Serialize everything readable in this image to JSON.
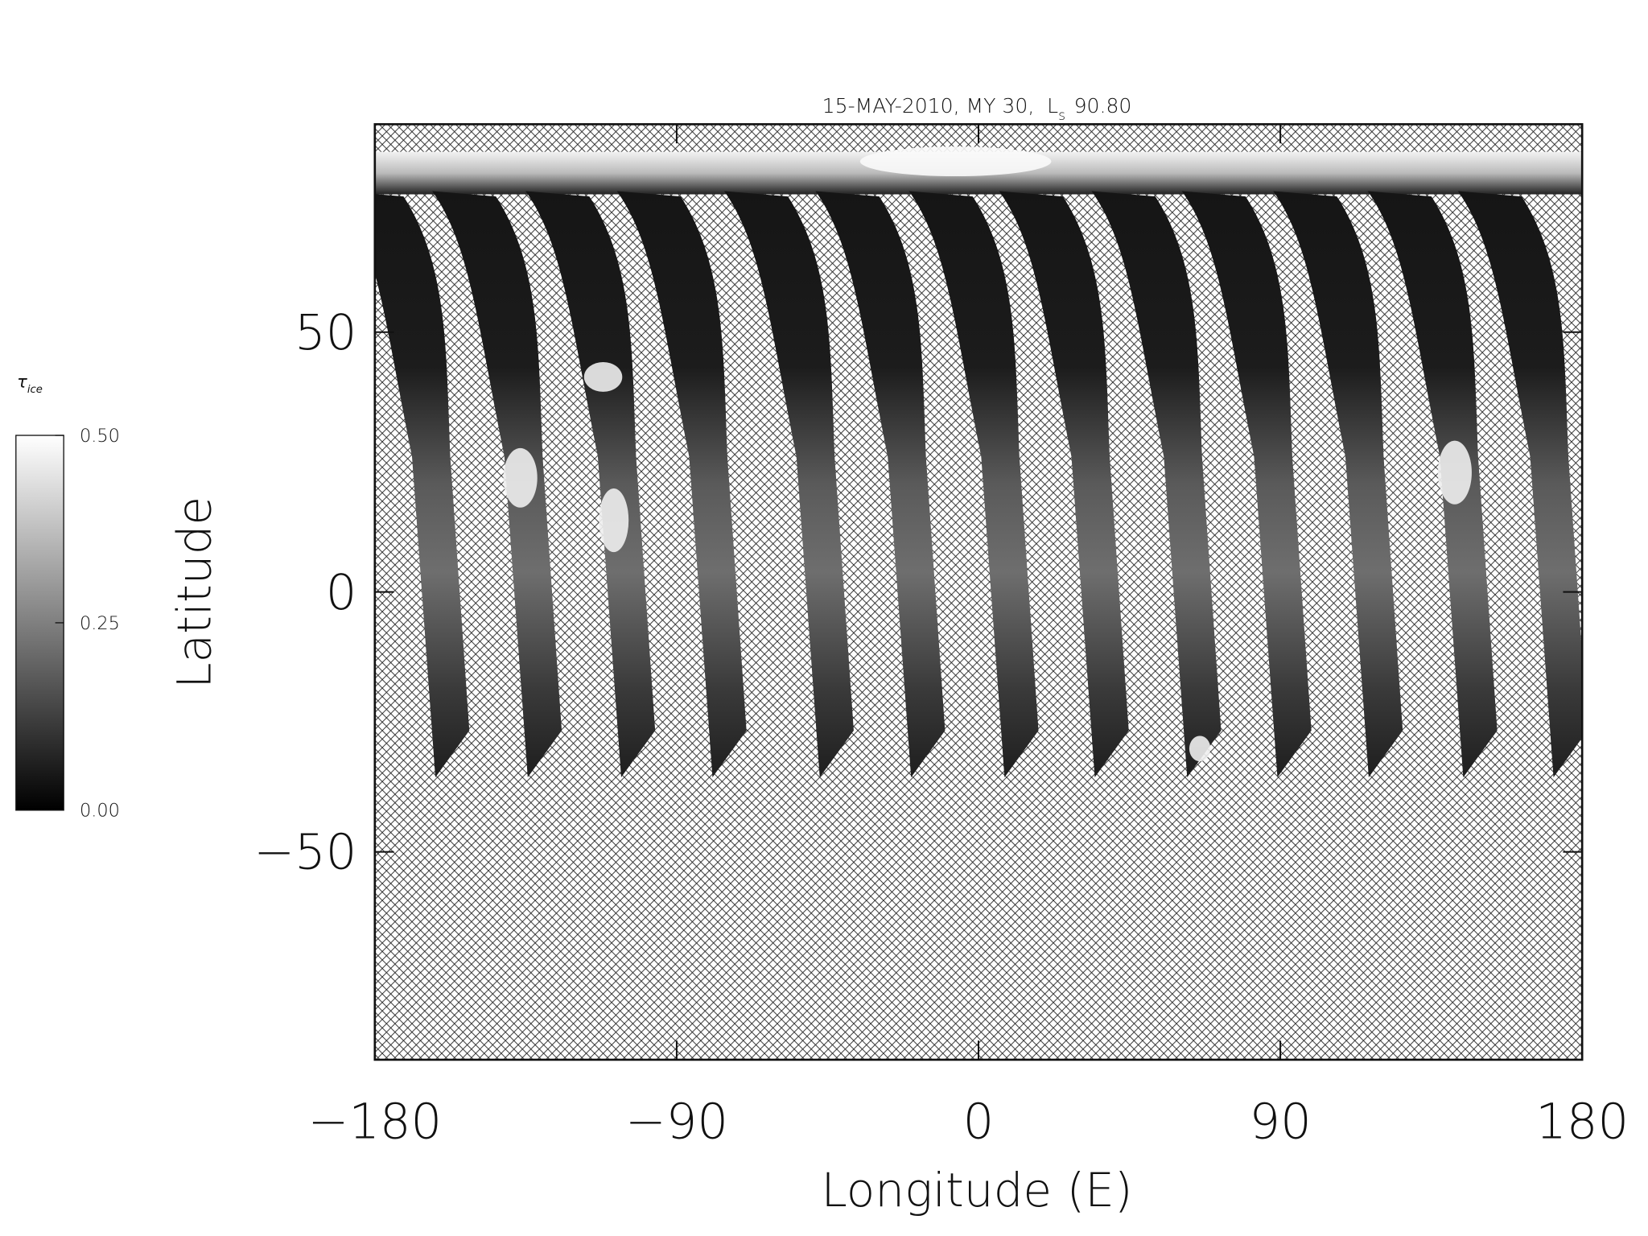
{
  "chart_data": {
    "type": "map",
    "title": "15-MAY-2010, MY 30,",
    "title_symbol": "L",
    "title_subscript": "s",
    "title_value": "90.80",
    "x_label": "Longitude (E)",
    "y_label": "Latitude",
    "xlim": [
      -180,
      180
    ],
    "xticks": [
      {
        "value": -180,
        "label": "−180"
      },
      {
        "value": -90,
        "label": "−90"
      },
      0,
      90,
      180
    ],
    "ylim": [
      -90,
      90
    ],
    "yticks": [
      {
        "value": -50,
        "label": "−50"
      },
      0,
      50
    ],
    "colorbar_label": "τ",
    "colorbar_label_subscript": "ice",
    "colorbar_lim": [
      0,
      0.5
    ],
    "colorbar_ticks": [
      {
        "value": 0,
        "label": "0.00"
      },
      {
        "value": 0.25,
        "label": "0.25"
      },
      {
        "value": 0.5,
        "label": "0.50"
      }
    ]
  }
}
